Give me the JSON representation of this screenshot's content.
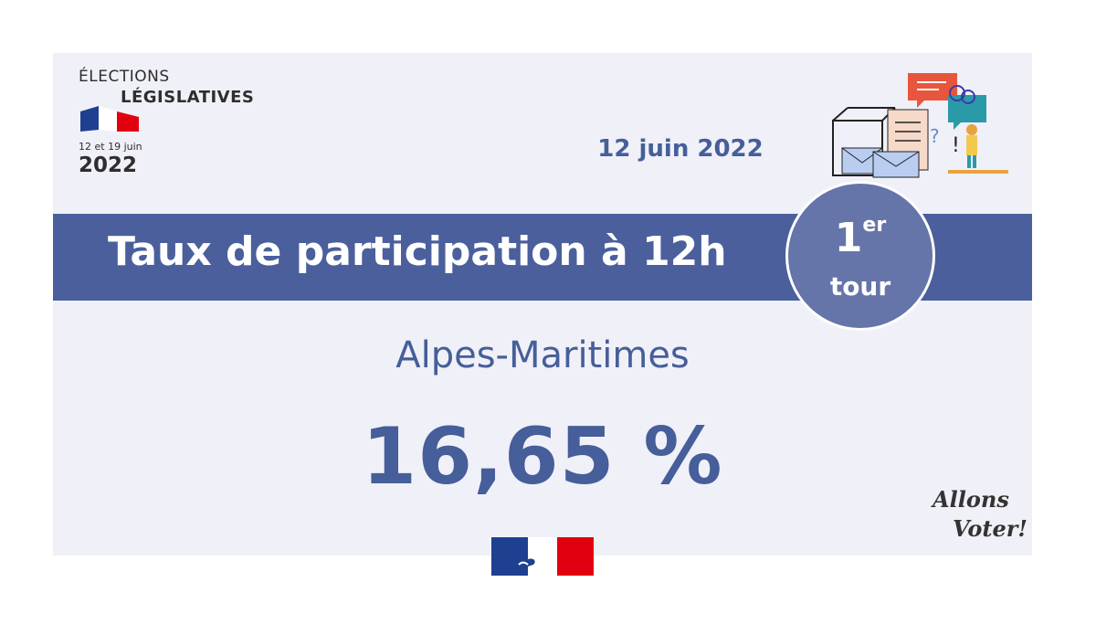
{
  "logo": {
    "line1": "ÉLECTIONS",
    "line2": "LÉGISLATIVES",
    "dates": "12 et 19 juin",
    "year": "2022"
  },
  "date": "12 juin 2022",
  "band": {
    "title": "Taux de participation à 12h"
  },
  "round": {
    "number": "1",
    "suffix": "er",
    "label": "tour"
  },
  "department": "Alpes-Maritimes",
  "rate": "16,65 %",
  "signature": {
    "line1": "Allons",
    "line2": "Voter!"
  },
  "colors": {
    "primary": "#465e99",
    "band": "#4a5f9c",
    "round": "#6575aa",
    "flag_blue": "#1f3f91",
    "flag_red": "#e1000f",
    "background": "#f0f0f8"
  }
}
